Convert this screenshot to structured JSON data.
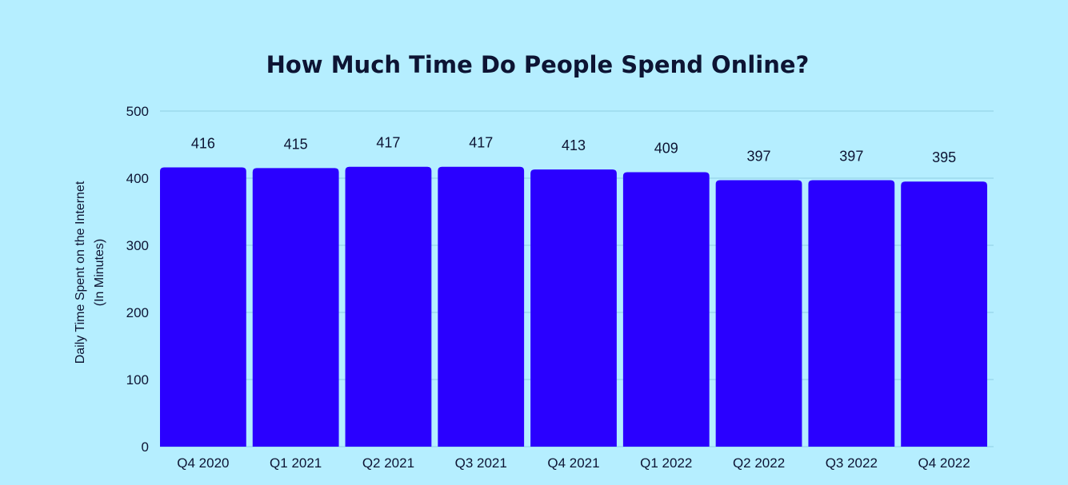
{
  "colors": {
    "background": "#b5eeff",
    "bar": "#2a00ff",
    "text": "#0d1433",
    "grid": "#8fcde3"
  },
  "chart_data": {
    "type": "bar",
    "title": "How Much Time Do People Spend Online?",
    "ylabel_line1": "Daily Time Spent on the Internet",
    "ylabel_line2": "(In Minutes)",
    "xlabel": "",
    "categories": [
      "Q4 2020",
      "Q1 2021",
      "Q2 2021",
      "Q3 2021",
      "Q4 2021",
      "Q1 2022",
      "Q2 2022",
      "Q3 2022",
      "Q4 2022"
    ],
    "values": [
      416,
      415,
      417,
      417,
      413,
      409,
      397,
      397,
      395
    ],
    "ylim": [
      0,
      500
    ],
    "yticks": [
      0,
      100,
      200,
      300,
      400,
      500
    ],
    "grid": true,
    "legend": "none",
    "data_labels": true
  }
}
